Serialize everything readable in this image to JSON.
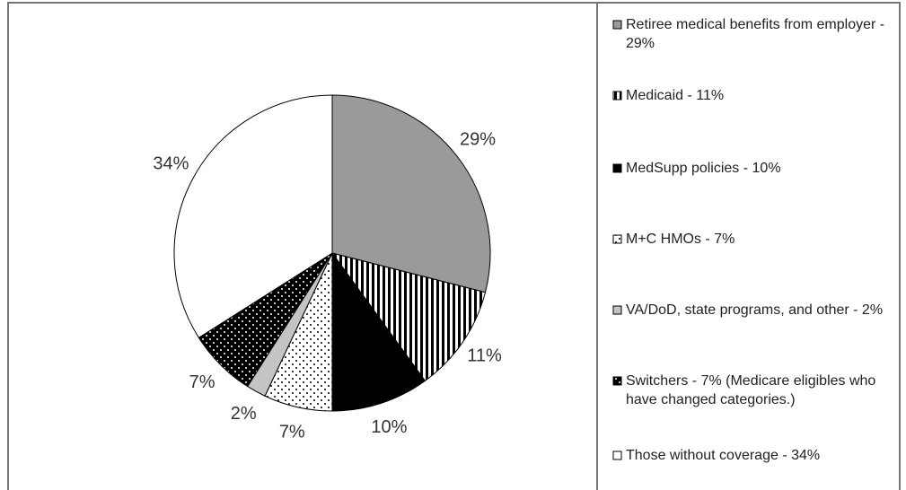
{
  "chart_data": {
    "type": "pie",
    "categories": [
      "Retiree medical benefits from employer - 29%",
      "Medicaid - 11%",
      "MedSupp policies - 10%",
      "M+C HMOs - 7%",
      "VA/DoD, state programs, and other - 2%",
      "Switchers - 7% (Medicare eligibles who have changed categories.)",
      "Those without coverage - 34%"
    ],
    "values": [
      29,
      11,
      10,
      7,
      2,
      7,
      34
    ],
    "value_labels": [
      "29%",
      "11%",
      "10%",
      "7%",
      "2%",
      "7%",
      "34%"
    ],
    "colors": [
      "#9a9a9a",
      "#ffffff",
      "#000000",
      "#ffffff",
      "#c4c4c4",
      "#000000",
      "#ffffff"
    ],
    "patterns": [
      "solid",
      "vertical-stripes",
      "solid",
      "dots",
      "solid",
      "dots",
      "solid"
    ]
  }
}
